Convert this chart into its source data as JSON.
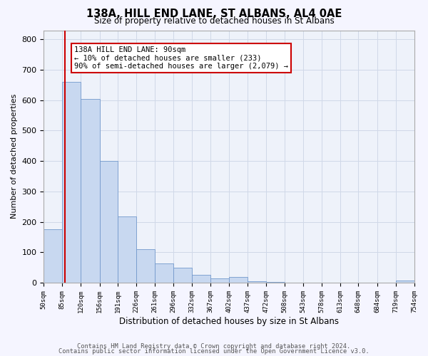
{
  "title": "138A, HILL END LANE, ST ALBANS, AL4 0AE",
  "subtitle": "Size of property relative to detached houses in St Albans",
  "xlabel": "Distribution of detached houses by size in St Albans",
  "ylabel": "Number of detached properties",
  "bar_color": "#c8d8f0",
  "bar_edge_color": "#7399cc",
  "grid_color": "#d0d8e8",
  "bg_color": "#eef2fa",
  "fig_bg_color": "#f5f5ff",
  "vline_color": "#cc0000",
  "vline_x": 90,
  "annotation_line1": "138A HILL END LANE: 90sqm",
  "annotation_line2": "← 10% of detached houses are smaller (233)",
  "annotation_line3": "90% of semi-detached houses are larger (2,079) →",
  "annotation_box_color": "#ffffff",
  "annotation_box_edge": "#cc0000",
  "bin_edges": [
    50,
    85,
    120,
    156,
    191,
    226,
    261,
    296,
    332,
    367,
    402,
    437,
    472,
    508,
    543,
    578,
    613,
    648,
    684,
    719,
    754
  ],
  "bin_heights": [
    175,
    660,
    605,
    400,
    218,
    110,
    63,
    48,
    25,
    15,
    18,
    5,
    2,
    0,
    0,
    0,
    0,
    0,
    0,
    8
  ],
  "ylim": [
    0,
    830
  ],
  "xlim": [
    50,
    754
  ],
  "yticks": [
    0,
    100,
    200,
    300,
    400,
    500,
    600,
    700,
    800
  ],
  "footer_line1": "Contains HM Land Registry data © Crown copyright and database right 2024.",
  "footer_line2": "Contains public sector information licensed under the Open Government Licence v3.0.",
  "tick_labels": [
    "50sqm",
    "85sqm",
    "120sqm",
    "156sqm",
    "191sqm",
    "226sqm",
    "261sqm",
    "296sqm",
    "332sqm",
    "367sqm",
    "402sqm",
    "437sqm",
    "472sqm",
    "508sqm",
    "543sqm",
    "578sqm",
    "613sqm",
    "648sqm",
    "684sqm",
    "719sqm",
    "754sqm"
  ]
}
